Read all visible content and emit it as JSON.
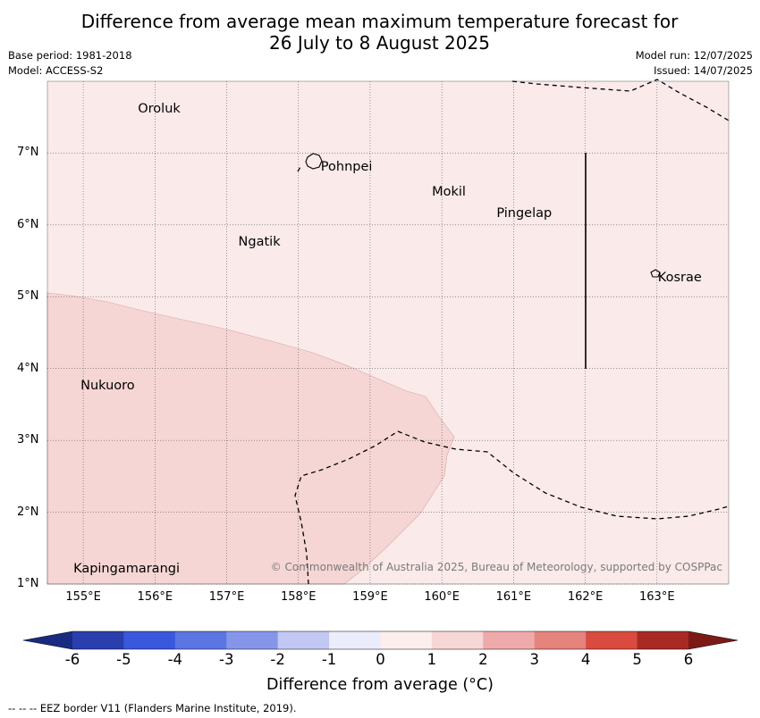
{
  "title": "Difference from average mean maximum temperature forecast for\n26 July to 8 August 2025",
  "meta_left": [
    "Base period: 1981-2018",
    "Model: ACCESS-S2"
  ],
  "meta_right": [
    "Model run: 12/07/2025",
    "Issued: 14/07/2025"
  ],
  "map": {
    "lon_range": [
      154.5,
      164.0
    ],
    "lat_range": [
      1.0,
      8.0
    ],
    "lat_ticks": [
      "7°N",
      "6°N",
      "5°N",
      "4°N",
      "3°N",
      "2°N",
      "1°N"
    ],
    "lon_ticks": [
      "155°E",
      "156°E",
      "157°E",
      "158°E",
      "159°E",
      "160°E",
      "161°E",
      "162°E",
      "163°E"
    ],
    "places": [
      {
        "name": "Oroluk",
        "lon": 155.75,
        "lat": 7.6
      },
      {
        "name": "Pohnpei",
        "lon": 158.3,
        "lat": 6.8
      },
      {
        "name": "Mokil",
        "lon": 159.85,
        "lat": 6.45
      },
      {
        "name": "Pingelap",
        "lon": 160.75,
        "lat": 6.15
      },
      {
        "name": "Ngatik",
        "lon": 157.15,
        "lat": 5.75
      },
      {
        "name": "Kosrae",
        "lon": 163.0,
        "lat": 5.25
      },
      {
        "name": "Nukuoro",
        "lon": 154.95,
        "lat": 3.75
      },
      {
        "name": "Kapingamarangi",
        "lon": 154.85,
        "lat": 1.2
      }
    ],
    "background_anomaly": "0 to 1",
    "shaded_region_anomaly": "1 to 2",
    "copyright": "© Commonwealth of Australia 2025, Bureau of Meteorology, supported by COSPPac"
  },
  "colorbar": {
    "ticks": [
      "-6",
      "-5",
      "-4",
      "-3",
      "-2",
      "-1",
      "0",
      "1",
      "2",
      "3",
      "4",
      "5",
      "6"
    ],
    "colors": [
      "#2a3fad",
      "#3a58dc",
      "#5b76e3",
      "#8596ea",
      "#c2c8f3",
      "#ebecfc",
      "#fdeeee",
      "#f7d6d6",
      "#eeaaaa",
      "#e5837d",
      "#d94a3f",
      "#a92a25"
    ],
    "low_extend_color": "#1a2a80",
    "high_extend_color": "#7d1a16",
    "label": "Difference from average (°C)"
  },
  "footnote": "--  --  -- EEZ border V11 (Flanders Marine Institute, 2019)."
}
